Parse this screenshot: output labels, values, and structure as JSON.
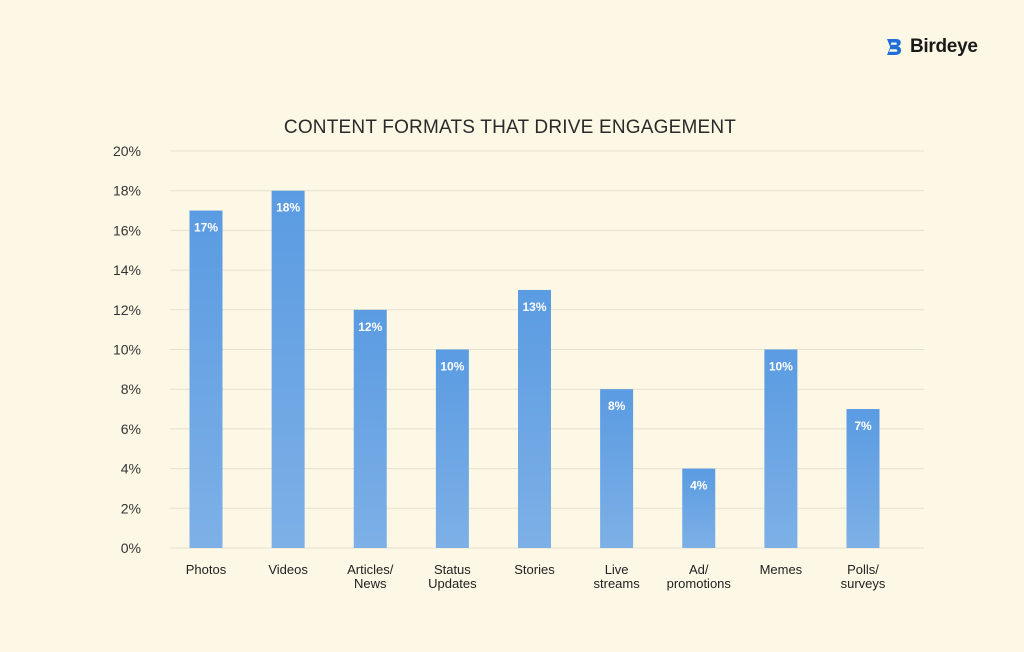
{
  "brand": {
    "name": "Birdeye",
    "icon": "birdeye-logo-icon",
    "color": "#1f6fd8"
  },
  "chart_data": {
    "type": "bar",
    "title": "CONTENT FORMATS THAT DRIVE ENGAGEMENT",
    "categories": [
      [
        "Photos"
      ],
      [
        "Videos"
      ],
      [
        "Articles/",
        "News"
      ],
      [
        "Status",
        "Updates"
      ],
      [
        "Stories"
      ],
      [
        "Live",
        "streams"
      ],
      [
        "Ad/",
        "promotions"
      ],
      [
        "Memes"
      ],
      [
        "Polls/",
        "surveys"
      ]
    ],
    "values": [
      17,
      18,
      12,
      10,
      13,
      8,
      4,
      10,
      7
    ],
    "value_labels": [
      "17%",
      "18%",
      "12%",
      "10%",
      "13%",
      "8%",
      "4%",
      "10%",
      "7%"
    ],
    "y_ticks": [
      "0%",
      "2%",
      "4%",
      "6%",
      "8%",
      "10%",
      "12%",
      "14%",
      "16%",
      "18%",
      "20%"
    ],
    "ylim": [
      0,
      20
    ],
    "unit": "%",
    "grid": true,
    "xlabel": "",
    "ylabel": "",
    "bar_color_top": "#5a9be2",
    "bar_color_bottom": "#7db0e6"
  }
}
